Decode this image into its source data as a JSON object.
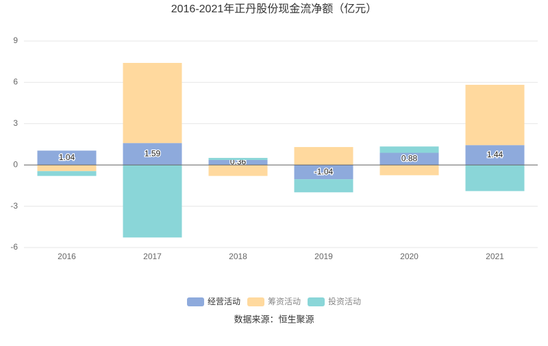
{
  "chart_data": {
    "type": "stacked_bar",
    "title": "2016-2021年正丹股份现金流净额（亿元）",
    "categories": [
      "2016",
      "2017",
      "2018",
      "2019",
      "2020",
      "2021"
    ],
    "series": [
      {
        "name": "经营活动",
        "color": "#8eaadc",
        "values": [
          1.04,
          1.59,
          0.36,
          -1.04,
          0.88,
          1.44
        ],
        "labels": true
      },
      {
        "name": "筹资活动",
        "color": "#ffd99e",
        "values": [
          -0.45,
          5.82,
          -0.8,
          1.3,
          -0.75,
          4.38
        ]
      },
      {
        "name": "投资活动",
        "color": "#8ad6d8",
        "values": [
          -0.35,
          -5.27,
          0.15,
          -0.95,
          0.46,
          -1.9
        ]
      }
    ],
    "ylim": [
      -6,
      9
    ],
    "yticks": [
      -6,
      -3,
      0,
      3,
      6,
      9
    ],
    "grid": true,
    "legend": "bottom",
    "source": "数据来源：恒生聚源"
  }
}
